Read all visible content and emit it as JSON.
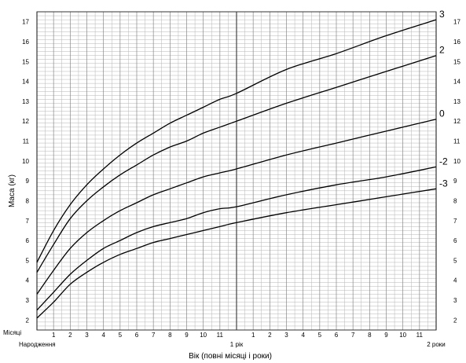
{
  "chart_data": {
    "type": "line",
    "ylabel": "Маса (кг)",
    "xlabel": "Вік (повні місяці і роки)",
    "x_row_label": "Місяці",
    "x_major_labels": [
      {
        "x": 0,
        "label": "Народження"
      },
      {
        "x": 12,
        "label": "1 рік"
      },
      {
        "x": 24,
        "label": "2 роки"
      }
    ],
    "x_tick_labels": [
      "1",
      "2",
      "3",
      "4",
      "5",
      "6",
      "7",
      "8",
      "9",
      "10",
      "11",
      "1",
      "2",
      "3",
      "4",
      "5",
      "6",
      "7",
      "8",
      "9",
      "10",
      "11"
    ],
    "xlim": [
      0,
      24
    ],
    "ylim": [
      1.5,
      17.5
    ],
    "y_ticks": [
      2,
      3,
      4,
      5,
      6,
      7,
      8,
      9,
      10,
      11,
      12,
      13,
      14,
      15,
      16,
      17
    ],
    "grid": true,
    "series": [
      {
        "name": "3",
        "x": [
          0,
          1,
          2,
          3,
          4,
          5,
          6,
          7,
          8,
          9,
          10,
          11,
          12,
          15,
          18,
          21,
          24
        ],
        "values": [
          4.9,
          6.5,
          7.8,
          8.8,
          9.6,
          10.3,
          10.9,
          11.4,
          11.9,
          12.3,
          12.7,
          13.1,
          13.4,
          14.6,
          15.4,
          16.3,
          17.1
        ]
      },
      {
        "name": "2",
        "x": [
          0,
          1,
          2,
          3,
          4,
          5,
          6,
          7,
          8,
          9,
          10,
          11,
          12,
          15,
          18,
          21,
          24
        ],
        "values": [
          4.4,
          5.8,
          7.1,
          8.0,
          8.7,
          9.3,
          9.8,
          10.3,
          10.7,
          11.0,
          11.4,
          11.7,
          12.0,
          12.9,
          13.7,
          14.5,
          15.3
        ]
      },
      {
        "name": "0",
        "x": [
          0,
          1,
          2,
          3,
          4,
          5,
          6,
          7,
          8,
          9,
          10,
          11,
          12,
          15,
          18,
          21,
          24
        ],
        "values": [
          3.3,
          4.5,
          5.6,
          6.4,
          7.0,
          7.5,
          7.9,
          8.3,
          8.6,
          8.9,
          9.2,
          9.4,
          9.6,
          10.3,
          10.9,
          11.5,
          12.1
        ]
      },
      {
        "name": "-2",
        "x": [
          0,
          1,
          2,
          3,
          4,
          5,
          6,
          7,
          8,
          9,
          10,
          11,
          12,
          15,
          18,
          21,
          24
        ],
        "values": [
          2.5,
          3.4,
          4.3,
          5.0,
          5.6,
          6.0,
          6.4,
          6.7,
          6.9,
          7.1,
          7.4,
          7.6,
          7.7,
          8.3,
          8.8,
          9.2,
          9.7
        ]
      },
      {
        "name": "-3",
        "x": [
          0,
          1,
          2,
          3,
          4,
          5,
          6,
          7,
          8,
          9,
          10,
          11,
          12,
          15,
          18,
          21,
          24
        ],
        "values": [
          2.1,
          2.9,
          3.8,
          4.4,
          4.9,
          5.3,
          5.6,
          5.9,
          6.1,
          6.3,
          6.5,
          6.7,
          6.9,
          7.4,
          7.8,
          8.2,
          8.6
        ]
      }
    ]
  }
}
